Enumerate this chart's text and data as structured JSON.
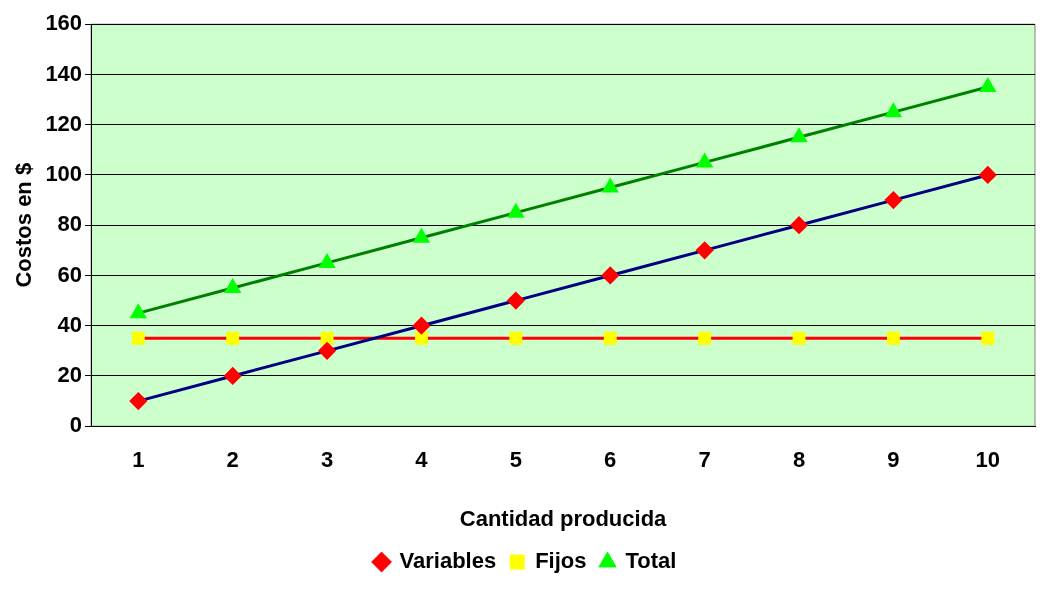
{
  "chart_data": {
    "type": "line",
    "xlabel": "Cantidad producida",
    "ylabel": "Costos en $",
    "categories": [
      "1",
      "2",
      "3",
      "4",
      "5",
      "6",
      "7",
      "8",
      "9",
      "10"
    ],
    "series": [
      {
        "name": "Variables",
        "color": "#000080",
        "colors": [
          "#ff0000",
          "#ff0000",
          "#ff0000",
          "#ff0000",
          "#ff0000",
          "#ff0000",
          "#ff0000",
          "#ff0000",
          "#ff0000",
          "#ff0000"
        ],
        "marker": "diamond",
        "values": [
          10,
          20,
          30,
          40,
          50,
          60,
          70,
          80,
          90,
          100
        ]
      },
      {
        "name": "Fijos",
        "color": "#ff0000",
        "colors": [
          "#ffff00",
          "#ffff00",
          "#ffff00",
          "#ffff00",
          "#ffff00",
          "#ffff00",
          "#ffff00",
          "#ffff00",
          "#ffff00",
          "#ffff00"
        ],
        "marker": "square",
        "values": [
          35,
          35,
          35,
          35,
          35,
          35,
          35,
          35,
          35,
          35
        ]
      },
      {
        "name": "Total",
        "color": "#008000",
        "colors": [
          "#00ff00",
          "#00ff00",
          "#00ff00",
          "#00ff00",
          "#00ff00",
          "#00ff00",
          "#00ff00",
          "#00ff00",
          "#00ff00",
          "#00ff00"
        ],
        "marker": "triangle",
        "values": [
          45,
          55,
          65,
          75,
          85,
          95,
          105,
          115,
          125,
          135
        ]
      }
    ],
    "ylim": [
      0,
      160
    ],
    "yticks": [
      0,
      20,
      40,
      60,
      80,
      100,
      120,
      140,
      160
    ],
    "grid": "y",
    "legend": "bottom",
    "line_style": "solid"
  }
}
